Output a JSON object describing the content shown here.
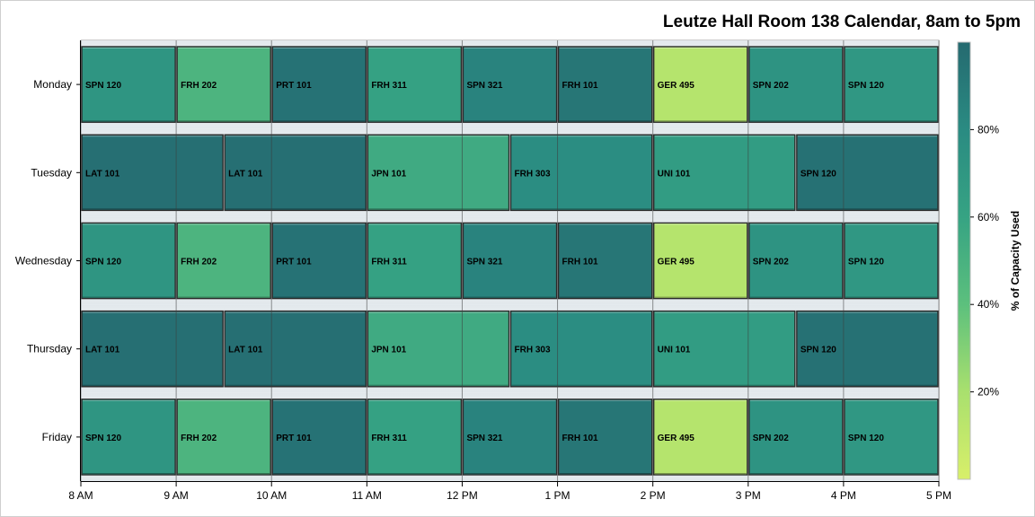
{
  "chart_data": {
    "type": "bar",
    "orientation": "horizontal-timeline",
    "title": "Leutze Hall Room 138 Calendar, 8am to 5pm",
    "days": [
      "Monday",
      "Tuesday",
      "Wednesday",
      "Thursday",
      "Friday"
    ],
    "x_ticks": [
      "8 AM",
      "9 AM",
      "10 AM",
      "11 AM",
      "12 PM",
      "1 PM",
      "2 PM",
      "3 PM",
      "4 PM",
      "5 PM"
    ],
    "xlim": [
      8,
      17
    ],
    "series": [
      {
        "day": "Monday",
        "classes": [
          {
            "label": "SPN 120",
            "start": 8,
            "end": 9,
            "capacity": 72
          },
          {
            "label": "FRH 202",
            "start": 9,
            "end": 10,
            "capacity": 48
          },
          {
            "label": "PRT 101",
            "start": 10,
            "end": 11,
            "capacity": 95
          },
          {
            "label": "FRH 311",
            "start": 11,
            "end": 12,
            "capacity": 62
          },
          {
            "label": "SPN 321",
            "start": 12,
            "end": 13,
            "capacity": 85
          },
          {
            "label": "FRH 101",
            "start": 13,
            "end": 14,
            "capacity": 93
          },
          {
            "label": "GER 495",
            "start": 14,
            "end": 15,
            "capacity": 15
          },
          {
            "label": "SPN 202",
            "start": 15,
            "end": 16,
            "capacity": 73
          },
          {
            "label": "SPN 120",
            "start": 16,
            "end": 17,
            "capacity": 70
          }
        ]
      },
      {
        "day": "Tuesday",
        "classes": [
          {
            "label": "LAT 101",
            "start": 8,
            "end": 9.5,
            "capacity": 97
          },
          {
            "label": "LAT 101",
            "start": 9.5,
            "end": 11,
            "capacity": 97
          },
          {
            "label": "JPN 101",
            "start": 11,
            "end": 12.5,
            "capacity": 55
          },
          {
            "label": "FRH 303",
            "start": 12.5,
            "end": 14,
            "capacity": 78
          },
          {
            "label": "UNI 101",
            "start": 14,
            "end": 15.5,
            "capacity": 66
          },
          {
            "label": "SPN 120",
            "start": 15.5,
            "end": 17,
            "capacity": 96
          }
        ]
      },
      {
        "day": "Wednesday",
        "classes": [
          {
            "label": "SPN 120",
            "start": 8,
            "end": 9,
            "capacity": 72
          },
          {
            "label": "FRH 202",
            "start": 9,
            "end": 10,
            "capacity": 48
          },
          {
            "label": "PRT 101",
            "start": 10,
            "end": 11,
            "capacity": 95
          },
          {
            "label": "FRH 311",
            "start": 11,
            "end": 12,
            "capacity": 62
          },
          {
            "label": "SPN 321",
            "start": 12,
            "end": 13,
            "capacity": 85
          },
          {
            "label": "FRH 101",
            "start": 13,
            "end": 14,
            "capacity": 93
          },
          {
            "label": "GER 495",
            "start": 14,
            "end": 15,
            "capacity": 15
          },
          {
            "label": "SPN 202",
            "start": 15,
            "end": 16,
            "capacity": 73
          },
          {
            "label": "SPN 120",
            "start": 16,
            "end": 17,
            "capacity": 70
          }
        ]
      },
      {
        "day": "Thursday",
        "classes": [
          {
            "label": "LAT 101",
            "start": 8,
            "end": 9.5,
            "capacity": 97
          },
          {
            "label": "LAT 101",
            "start": 9.5,
            "end": 11,
            "capacity": 97
          },
          {
            "label": "JPN 101",
            "start": 11,
            "end": 12.5,
            "capacity": 55
          },
          {
            "label": "FRH 303",
            "start": 12.5,
            "end": 14,
            "capacity": 78
          },
          {
            "label": "UNI 101",
            "start": 14,
            "end": 15.5,
            "capacity": 66
          },
          {
            "label": "SPN 120",
            "start": 15.5,
            "end": 17,
            "capacity": 96
          }
        ]
      },
      {
        "day": "Friday",
        "classes": [
          {
            "label": "SPN 120",
            "start": 8,
            "end": 9,
            "capacity": 72
          },
          {
            "label": "FRH 202",
            "start": 9,
            "end": 10,
            "capacity": 48
          },
          {
            "label": "PRT 101",
            "start": 10,
            "end": 11,
            "capacity": 95
          },
          {
            "label": "FRH 311",
            "start": 11,
            "end": 12,
            "capacity": 62
          },
          {
            "label": "SPN 321",
            "start": 12,
            "end": 13,
            "capacity": 85
          },
          {
            "label": "FRH 101",
            "start": 13,
            "end": 14,
            "capacity": 93
          },
          {
            "label": "GER 495",
            "start": 14,
            "end": 15,
            "capacity": 15
          },
          {
            "label": "SPN 202",
            "start": 15,
            "end": 16,
            "capacity": 73
          },
          {
            "label": "SPN 120",
            "start": 16,
            "end": 17,
            "capacity": 70
          }
        ]
      }
    ],
    "legend": {
      "title": "% of Capacity Used",
      "ticks": [
        "20%",
        "40%",
        "60%",
        "80%"
      ],
      "tick_values": [
        20,
        40,
        60,
        80
      ],
      "range": [
        0,
        100
      ],
      "placement": "right",
      "colors": [
        "#d8ef6a",
        "#a9e06e",
        "#5cc07d",
        "#36a383",
        "#2a8b82",
        "#256a70"
      ]
    }
  }
}
